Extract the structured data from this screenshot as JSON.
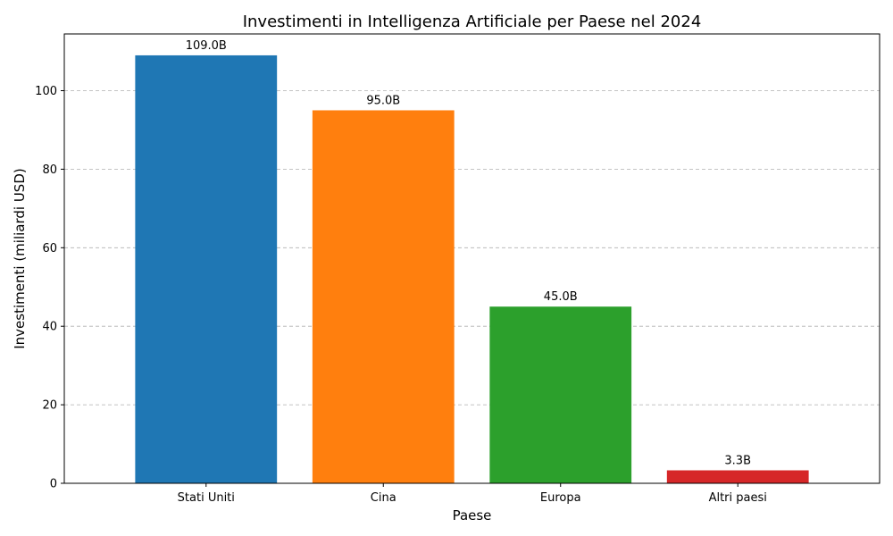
{
  "chart_data": {
    "type": "bar",
    "title": "Investimenti in Intelligenza Artificiale per Paese nel 2024",
    "xlabel": "Paese",
    "ylabel": "Investimenti (miliardi USD)",
    "categories": [
      "Stati Uniti",
      "Cina",
      "Europa",
      "Altri paesi"
    ],
    "values": [
      109.0,
      95.0,
      45.0,
      3.3
    ],
    "data_labels": [
      "109.0B",
      "95.0B",
      "45.0B",
      "3.3B"
    ],
    "colors": [
      "#1f77b4",
      "#ff7f0e",
      "#2ca02c",
      "#d62728"
    ],
    "ylim": [
      0,
      114.45
    ],
    "yticks": [
      0,
      20,
      40,
      60,
      80,
      100
    ],
    "grid": "y-dashed"
  }
}
